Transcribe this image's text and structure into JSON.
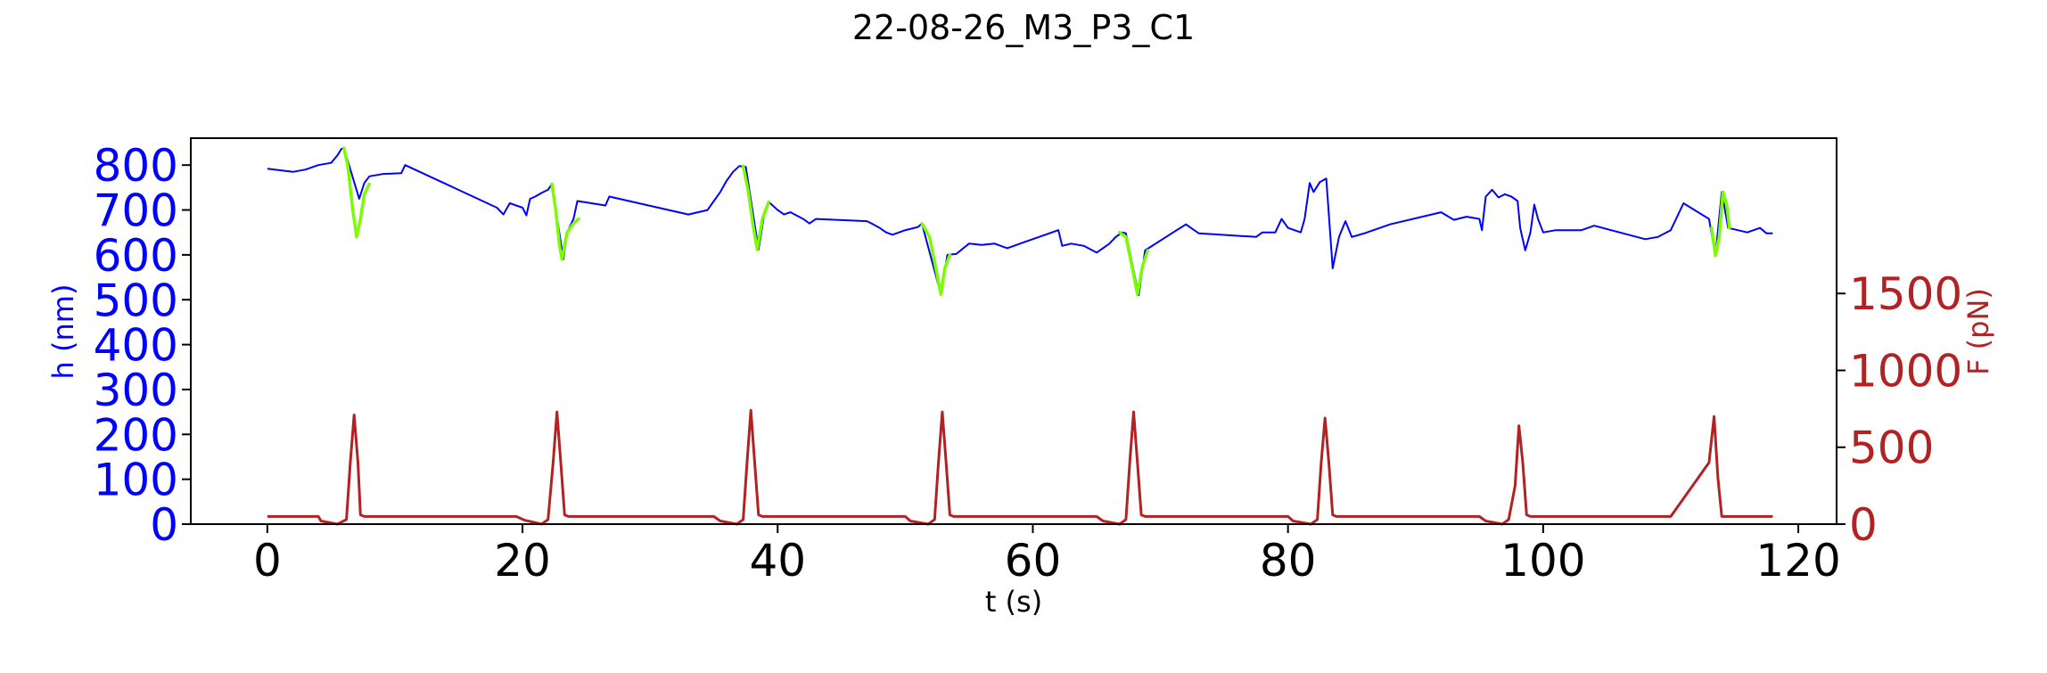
{
  "chart_data": {
    "type": "line",
    "title": "22-08-26_M3_P3_C1",
    "xlabel": "t (s)",
    "ylabel": "h (nm)",
    "ylabel_right": "F (pN)",
    "xlim": [
      -6,
      123
    ],
    "ylim": [
      0,
      860
    ],
    "ylim_right": [
      0,
      2510
    ],
    "xticks": [
      0,
      20,
      40,
      60,
      80,
      100,
      120
    ],
    "yticks": [
      0,
      100,
      200,
      300,
      400,
      500,
      600,
      700,
      800
    ],
    "yticks_right": [
      0,
      500,
      1000,
      1500
    ],
    "grid": false,
    "colors": {
      "h": "#0000ff",
      "h_highlight": "#7cfc00",
      "force": "#b22222"
    },
    "series": [
      {
        "axis": "left",
        "color": "#0000ff",
        "points": [
          [
            0,
            792
          ],
          [
            2,
            785
          ],
          [
            3,
            790
          ],
          [
            4,
            800
          ],
          [
            5,
            805
          ],
          [
            5.5,
            822
          ],
          [
            5.8,
            836
          ],
          [
            6,
            838
          ],
          [
            7.2,
            725
          ],
          [
            7.6,
            760
          ],
          [
            8,
            775
          ],
          [
            9,
            780
          ],
          [
            10.5,
            782
          ],
          [
            10.8,
            800
          ],
          [
            18,
            705
          ],
          [
            18.5,
            690
          ],
          [
            19,
            715
          ],
          [
            20,
            705
          ],
          [
            20.3,
            688
          ],
          [
            20.6,
            725
          ],
          [
            21,
            730
          ],
          [
            21.5,
            738
          ],
          [
            22,
            745
          ],
          [
            22.3,
            758
          ],
          [
            23.2,
            590
          ],
          [
            23.5,
            650
          ],
          [
            24,
            680
          ],
          [
            24.3,
            720
          ],
          [
            26.5,
            710
          ],
          [
            26.8,
            730
          ],
          [
            33,
            690
          ],
          [
            34.5,
            700
          ],
          [
            35,
            720
          ],
          [
            35.5,
            740
          ],
          [
            36,
            765
          ],
          [
            36.5,
            785
          ],
          [
            37,
            798
          ],
          [
            37.5,
            796
          ],
          [
            38.5,
            612
          ],
          [
            39,
            700
          ],
          [
            39.3,
            718
          ],
          [
            40,
            700
          ],
          [
            40.5,
            690
          ],
          [
            41,
            695
          ],
          [
            42,
            680
          ],
          [
            42.5,
            670
          ],
          [
            43,
            680
          ],
          [
            47,
            675
          ],
          [
            47.5,
            668
          ],
          [
            48,
            660
          ],
          [
            48.5,
            650
          ],
          [
            49,
            645
          ],
          [
            50,
            655
          ],
          [
            51,
            662
          ],
          [
            51.3,
            670
          ],
          [
            52.8,
            512
          ],
          [
            53.3,
            600
          ],
          [
            54,
            602
          ],
          [
            55,
            625
          ],
          [
            56,
            622
          ],
          [
            57,
            625
          ],
          [
            58,
            615
          ],
          [
            62,
            655
          ],
          [
            62.3,
            620
          ],
          [
            63,
            625
          ],
          [
            64,
            620
          ],
          [
            65,
            605
          ],
          [
            65.5,
            615
          ],
          [
            66,
            625
          ],
          [
            66.5,
            640
          ],
          [
            67,
            650
          ],
          [
            67.3,
            648
          ],
          [
            68.3,
            510
          ],
          [
            68.8,
            610
          ],
          [
            71,
            650
          ],
          [
            72,
            668
          ],
          [
            73,
            648
          ],
          [
            77.5,
            640
          ],
          [
            78,
            650
          ],
          [
            79,
            650
          ],
          [
            79.5,
            680
          ],
          [
            80,
            660
          ],
          [
            81,
            650
          ],
          [
            81.3,
            680
          ],
          [
            81.7,
            760
          ],
          [
            82,
            740
          ],
          [
            82.5,
            762
          ],
          [
            83,
            770
          ],
          [
            83.5,
            570
          ],
          [
            84,
            640
          ],
          [
            84.5,
            675
          ],
          [
            85,
            640
          ],
          [
            86,
            648
          ],
          [
            88,
            668
          ],
          [
            92,
            695
          ],
          [
            93,
            678
          ],
          [
            94,
            685
          ],
          [
            95,
            680
          ],
          [
            95.2,
            655
          ],
          [
            95.5,
            730
          ],
          [
            96,
            745
          ],
          [
            96.5,
            728
          ],
          [
            97,
            735
          ],
          [
            97.5,
            730
          ],
          [
            98,
            720
          ],
          [
            98.2,
            660
          ],
          [
            98.6,
            610
          ],
          [
            99,
            650
          ],
          [
            99.3,
            712
          ],
          [
            99.6,
            680
          ],
          [
            100,
            650
          ],
          [
            101,
            655
          ],
          [
            103,
            655
          ],
          [
            104,
            665
          ],
          [
            108,
            635
          ],
          [
            109,
            640
          ],
          [
            110,
            655
          ],
          [
            111,
            715
          ],
          [
            113,
            680
          ],
          [
            113.5,
            598
          ],
          [
            114,
            740
          ],
          [
            114.5,
            660
          ],
          [
            116,
            650
          ],
          [
            117,
            660
          ],
          [
            117.5,
            648
          ],
          [
            118,
            648
          ]
        ]
      },
      {
        "axis": "left",
        "color": "#7cfc00",
        "segments": [
          [
            [
              6,
              838
            ],
            [
              6.3,
              800
            ],
            [
              6.7,
              700
            ],
            [
              7,
              640
            ],
            [
              7.3,
              680
            ],
            [
              7.6,
              735
            ],
            [
              8,
              758
            ]
          ],
          [
            [
              22.3,
              758
            ],
            [
              22.6,
              700
            ],
            [
              22.9,
              620
            ],
            [
              23.1,
              590
            ],
            [
              23.5,
              650
            ],
            [
              24,
              670
            ],
            [
              24.4,
              680
            ]
          ],
          [
            [
              37.3,
              798
            ],
            [
              37.7,
              740
            ],
            [
              38.1,
              660
            ],
            [
              38.4,
              612
            ],
            [
              38.8,
              680
            ],
            [
              39.3,
              718
            ]
          ],
          [
            [
              51.3,
              670
            ],
            [
              51.9,
              640
            ],
            [
              52.4,
              570
            ],
            [
              52.8,
              512
            ],
            [
              53.1,
              570
            ],
            [
              53.5,
              600
            ]
          ],
          [
            [
              66.8,
              650
            ],
            [
              67.3,
              640
            ],
            [
              67.8,
              570
            ],
            [
              68.2,
              512
            ],
            [
              68.6,
              575
            ],
            [
              69,
              610
            ]
          ],
          [
            [
              113.2,
              660
            ],
            [
              113.5,
              598
            ],
            [
              113.8,
              640
            ],
            [
              114.1,
              740
            ],
            [
              114.4,
              710
            ],
            [
              114.6,
              660
            ]
          ]
        ]
      },
      {
        "axis": "right",
        "color": "#b22222",
        "points": [
          [
            0,
            50
          ],
          [
            4,
            50
          ],
          [
            4.2,
            20
          ],
          [
            5.5,
            0
          ],
          [
            6.2,
            30
          ],
          [
            6.5,
            400
          ],
          [
            6.8,
            710
          ],
          [
            7.1,
            400
          ],
          [
            7.3,
            60
          ],
          [
            7.6,
            50
          ],
          [
            19.5,
            50
          ],
          [
            20.2,
            25
          ],
          [
            21.5,
            0
          ],
          [
            22,
            30
          ],
          [
            22.4,
            400
          ],
          [
            22.7,
            730
          ],
          [
            23,
            400
          ],
          [
            23.3,
            60
          ],
          [
            23.6,
            50
          ],
          [
            35,
            50
          ],
          [
            35.5,
            20
          ],
          [
            36.8,
            0
          ],
          [
            37.3,
            30
          ],
          [
            37.6,
            400
          ],
          [
            37.9,
            740
          ],
          [
            38.2,
            400
          ],
          [
            38.5,
            60
          ],
          [
            38.8,
            50
          ],
          [
            50,
            50
          ],
          [
            50.4,
            20
          ],
          [
            51.8,
            0
          ],
          [
            52.3,
            30
          ],
          [
            52.6,
            400
          ],
          [
            52.9,
            730
          ],
          [
            53.2,
            400
          ],
          [
            53.5,
            60
          ],
          [
            53.8,
            50
          ],
          [
            65,
            50
          ],
          [
            65.5,
            20
          ],
          [
            66.8,
            0
          ],
          [
            67.3,
            30
          ],
          [
            67.6,
            400
          ],
          [
            67.9,
            730
          ],
          [
            68.2,
            400
          ],
          [
            68.5,
            60
          ],
          [
            68.8,
            50
          ],
          [
            80,
            50
          ],
          [
            80.4,
            20
          ],
          [
            81.8,
            0
          ],
          [
            82.3,
            30
          ],
          [
            82.6,
            400
          ],
          [
            82.9,
            690
          ],
          [
            83.2,
            400
          ],
          [
            83.5,
            60
          ],
          [
            83.8,
            50
          ],
          [
            95,
            50
          ],
          [
            95.5,
            20
          ],
          [
            96.8,
            0
          ],
          [
            97.3,
            30
          ],
          [
            97.8,
            250
          ],
          [
            98.1,
            640
          ],
          [
            98.4,
            400
          ],
          [
            98.7,
            60
          ],
          [
            99,
            50
          ],
          [
            110,
            50
          ],
          [
            113,
            400
          ],
          [
            113.4,
            700
          ],
          [
            113.7,
            300
          ],
          [
            114,
            50
          ],
          [
            118,
            50
          ]
        ]
      }
    ]
  }
}
